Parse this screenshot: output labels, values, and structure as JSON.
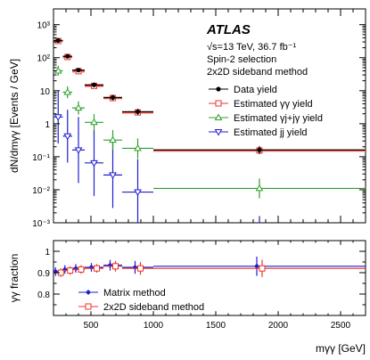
{
  "chart_data": [
    {
      "type": "scatter",
      "xlabel": "",
      "ylabel": "dN/dmγγ [Events / GeV]",
      "ylog": true,
      "xlim": [
        200,
        2700
      ],
      "ylim": [
        0.001,
        3000
      ],
      "ytick_labels": [
        "10⁻³",
        "10⁻²",
        "10⁻¹",
        "1",
        "10",
        "10²",
        "10³"
      ],
      "annotations": {
        "experiment": "ATLAS",
        "energy": "√s=13 TeV, 36.7 fb⁻¹",
        "selection": "Spin-2 selection",
        "method": "2x2D sideband method"
      },
      "legend_position": "top-right",
      "bins": [
        [
          200,
          275
        ],
        [
          275,
          350
        ],
        [
          350,
          450
        ],
        [
          450,
          600
        ],
        [
          600,
          750
        ],
        [
          750,
          1000
        ],
        [
          1000,
          2700
        ]
      ],
      "series": [
        {
          "name": "Data yield",
          "color": "#000000",
          "marker": "dot",
          "values": [
            330,
            110,
            42,
            15,
            6.2,
            2.3,
            0.16
          ],
          "err": [
            0.06,
            0.06,
            0.06,
            0.06,
            0.08,
            0.09,
            0.12
          ]
        },
        {
          "name": "Estimated γγ yield",
          "color": "#e8342c",
          "marker": "square",
          "values": [
            320,
            105,
            39,
            14,
            6.0,
            2.2,
            0.155
          ],
          "err": [
            0,
            0,
            0,
            0,
            0,
            0,
            0
          ]
        },
        {
          "name": "Estimated γj+jγ yield",
          "color": "#2ca02c",
          "marker": "triangle-up",
          "values": [
            40,
            9,
            3.0,
            1.1,
            0.32,
            0.18,
            0.011
          ],
          "err": [
            0.15,
            0.18,
            0.2,
            0.25,
            0.3,
            0.3,
            0.3
          ]
        },
        {
          "name": "Estimated jj yield",
          "color": "#1f1fcf",
          "marker": "triangle-down",
          "values": [
            1.6,
            0.42,
            0.16,
            0.065,
            0.028,
            0.0085,
            0.0
          ],
          "err": [
            0.8,
            0.8,
            1.0,
            1.0,
            1.0,
            1.0,
            0
          ]
        }
      ]
    },
    {
      "type": "scatter",
      "xlabel": "mγγ [GeV]",
      "ylabel": "γγ fraction",
      "xlim": [
        200,
        2700
      ],
      "ylim": [
        0.7,
        1.05
      ],
      "xticks": [
        500,
        1000,
        1500,
        2000,
        2500
      ],
      "yticks": [
        0.8,
        0.9,
        1.0
      ],
      "legend_position": "bottom-left",
      "bins": [
        [
          200,
          275
        ],
        [
          275,
          350
        ],
        [
          350,
          450
        ],
        [
          450,
          600
        ],
        [
          600,
          750
        ],
        [
          750,
          1000
        ],
        [
          1000,
          2700
        ]
      ],
      "series": [
        {
          "name": "Matrix method",
          "color": "#1f1fcf",
          "marker": "diamond",
          "values": [
            0.905,
            0.915,
            0.92,
            0.925,
            0.935,
            0.925,
            0.93
          ],
          "err": [
            0.02,
            0.02,
            0.02,
            0.02,
            0.025,
            0.03,
            0.045
          ]
        },
        {
          "name": "2x2D sideband method",
          "color": "#e8342c",
          "marker": "square",
          "values": [
            0.9,
            0.91,
            0.915,
            0.92,
            0.93,
            0.92,
            0.92
          ],
          "err": [
            0.02,
            0.02,
            0.02,
            0.02,
            0.025,
            0.03,
            0.04
          ]
        }
      ]
    }
  ]
}
